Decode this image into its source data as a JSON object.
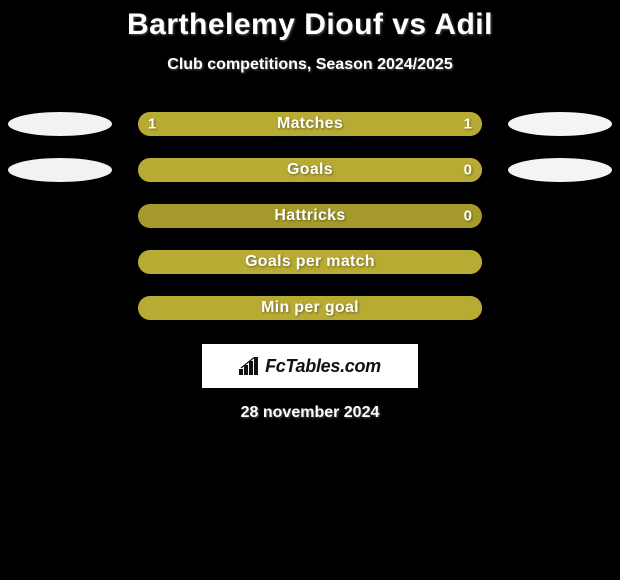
{
  "title": "Barthelemy Diouf vs Adil",
  "subtitle": "Club competitions, Season 2024/2025",
  "date": "28 november 2024",
  "logo_text": "FcTables.com",
  "colors": {
    "background": "#000000",
    "ellipse_left": "#f2f2f2",
    "ellipse_right": "#f4f4f4",
    "bar_track": "#a59a2b",
    "bar_fill": "#b7ab33",
    "text": "#ffffff",
    "logo_bg": "#ffffff",
    "logo_text": "#111111"
  },
  "stats": [
    {
      "label": "Matches",
      "left_value": "1",
      "right_value": "1",
      "left_fill_pct": 50,
      "right_fill_pct": 50,
      "show_ellipses": true
    },
    {
      "label": "Goals",
      "left_value": "",
      "right_value": "0",
      "left_fill_pct": 100,
      "right_fill_pct": 0,
      "show_ellipses": true
    },
    {
      "label": "Hattricks",
      "left_value": "",
      "right_value": "0",
      "left_fill_pct": 0,
      "right_fill_pct": 0,
      "show_ellipses": false
    },
    {
      "label": "Goals per match",
      "left_value": "",
      "right_value": "",
      "left_fill_pct": 100,
      "right_fill_pct": 0,
      "show_ellipses": false
    },
    {
      "label": "Min per goal",
      "left_value": "",
      "right_value": "",
      "left_fill_pct": 100,
      "right_fill_pct": 0,
      "show_ellipses": false
    }
  ]
}
